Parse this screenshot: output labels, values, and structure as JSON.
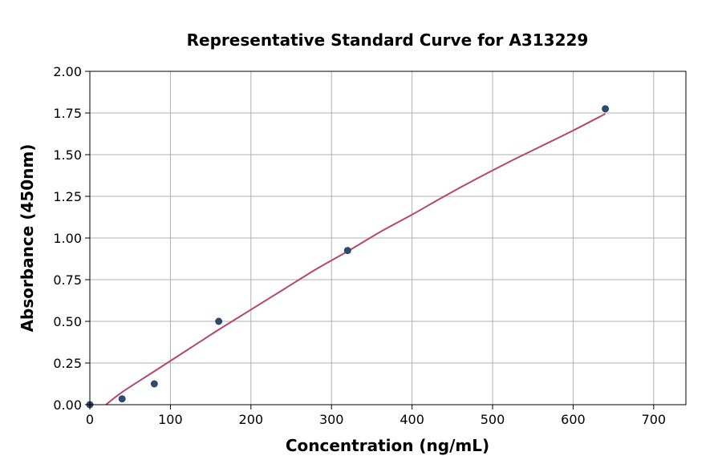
{
  "chart_data": {
    "type": "scatter",
    "title": "Representative Standard Curve for A313229",
    "xlabel": "Concentration (ng/mL)",
    "ylabel": "Absorbance (450nm)",
    "xlim": [
      0,
      740
    ],
    "ylim": [
      0,
      2.0
    ],
    "xticks": [
      0,
      100,
      200,
      300,
      400,
      500,
      600,
      700
    ],
    "xtick_labels": [
      "0",
      "100",
      "200",
      "300",
      "400",
      "500",
      "600",
      "700"
    ],
    "yticks": [
      0,
      0.25,
      0.5,
      0.75,
      1.0,
      1.25,
      1.5,
      1.75,
      2.0
    ],
    "ytick_labels": [
      "0.00",
      "0.25",
      "0.50",
      "0.75",
      "1.00",
      "1.25",
      "1.50",
      "1.75",
      "2.00"
    ],
    "grid": true,
    "series": [
      {
        "kind": "points",
        "color": "#2e4a6e",
        "x": [
          0,
          40,
          80,
          160,
          320,
          640
        ],
        "y": [
          0.0,
          0.035,
          0.125,
          0.5,
          0.925,
          1.775
        ]
      },
      {
        "kind": "fit-curve",
        "color": "#b5476b",
        "x": [
          20,
          40,
          80,
          120,
          160,
          200,
          240,
          280,
          320,
          360,
          400,
          440,
          480,
          520,
          560,
          600,
          640
        ],
        "y": [
          0.0,
          0.075,
          0.2,
          0.325,
          0.45,
          0.57,
          0.69,
          0.81,
          0.92,
          1.035,
          1.14,
          1.25,
          1.355,
          1.455,
          1.55,
          1.645,
          1.745
        ]
      }
    ]
  }
}
